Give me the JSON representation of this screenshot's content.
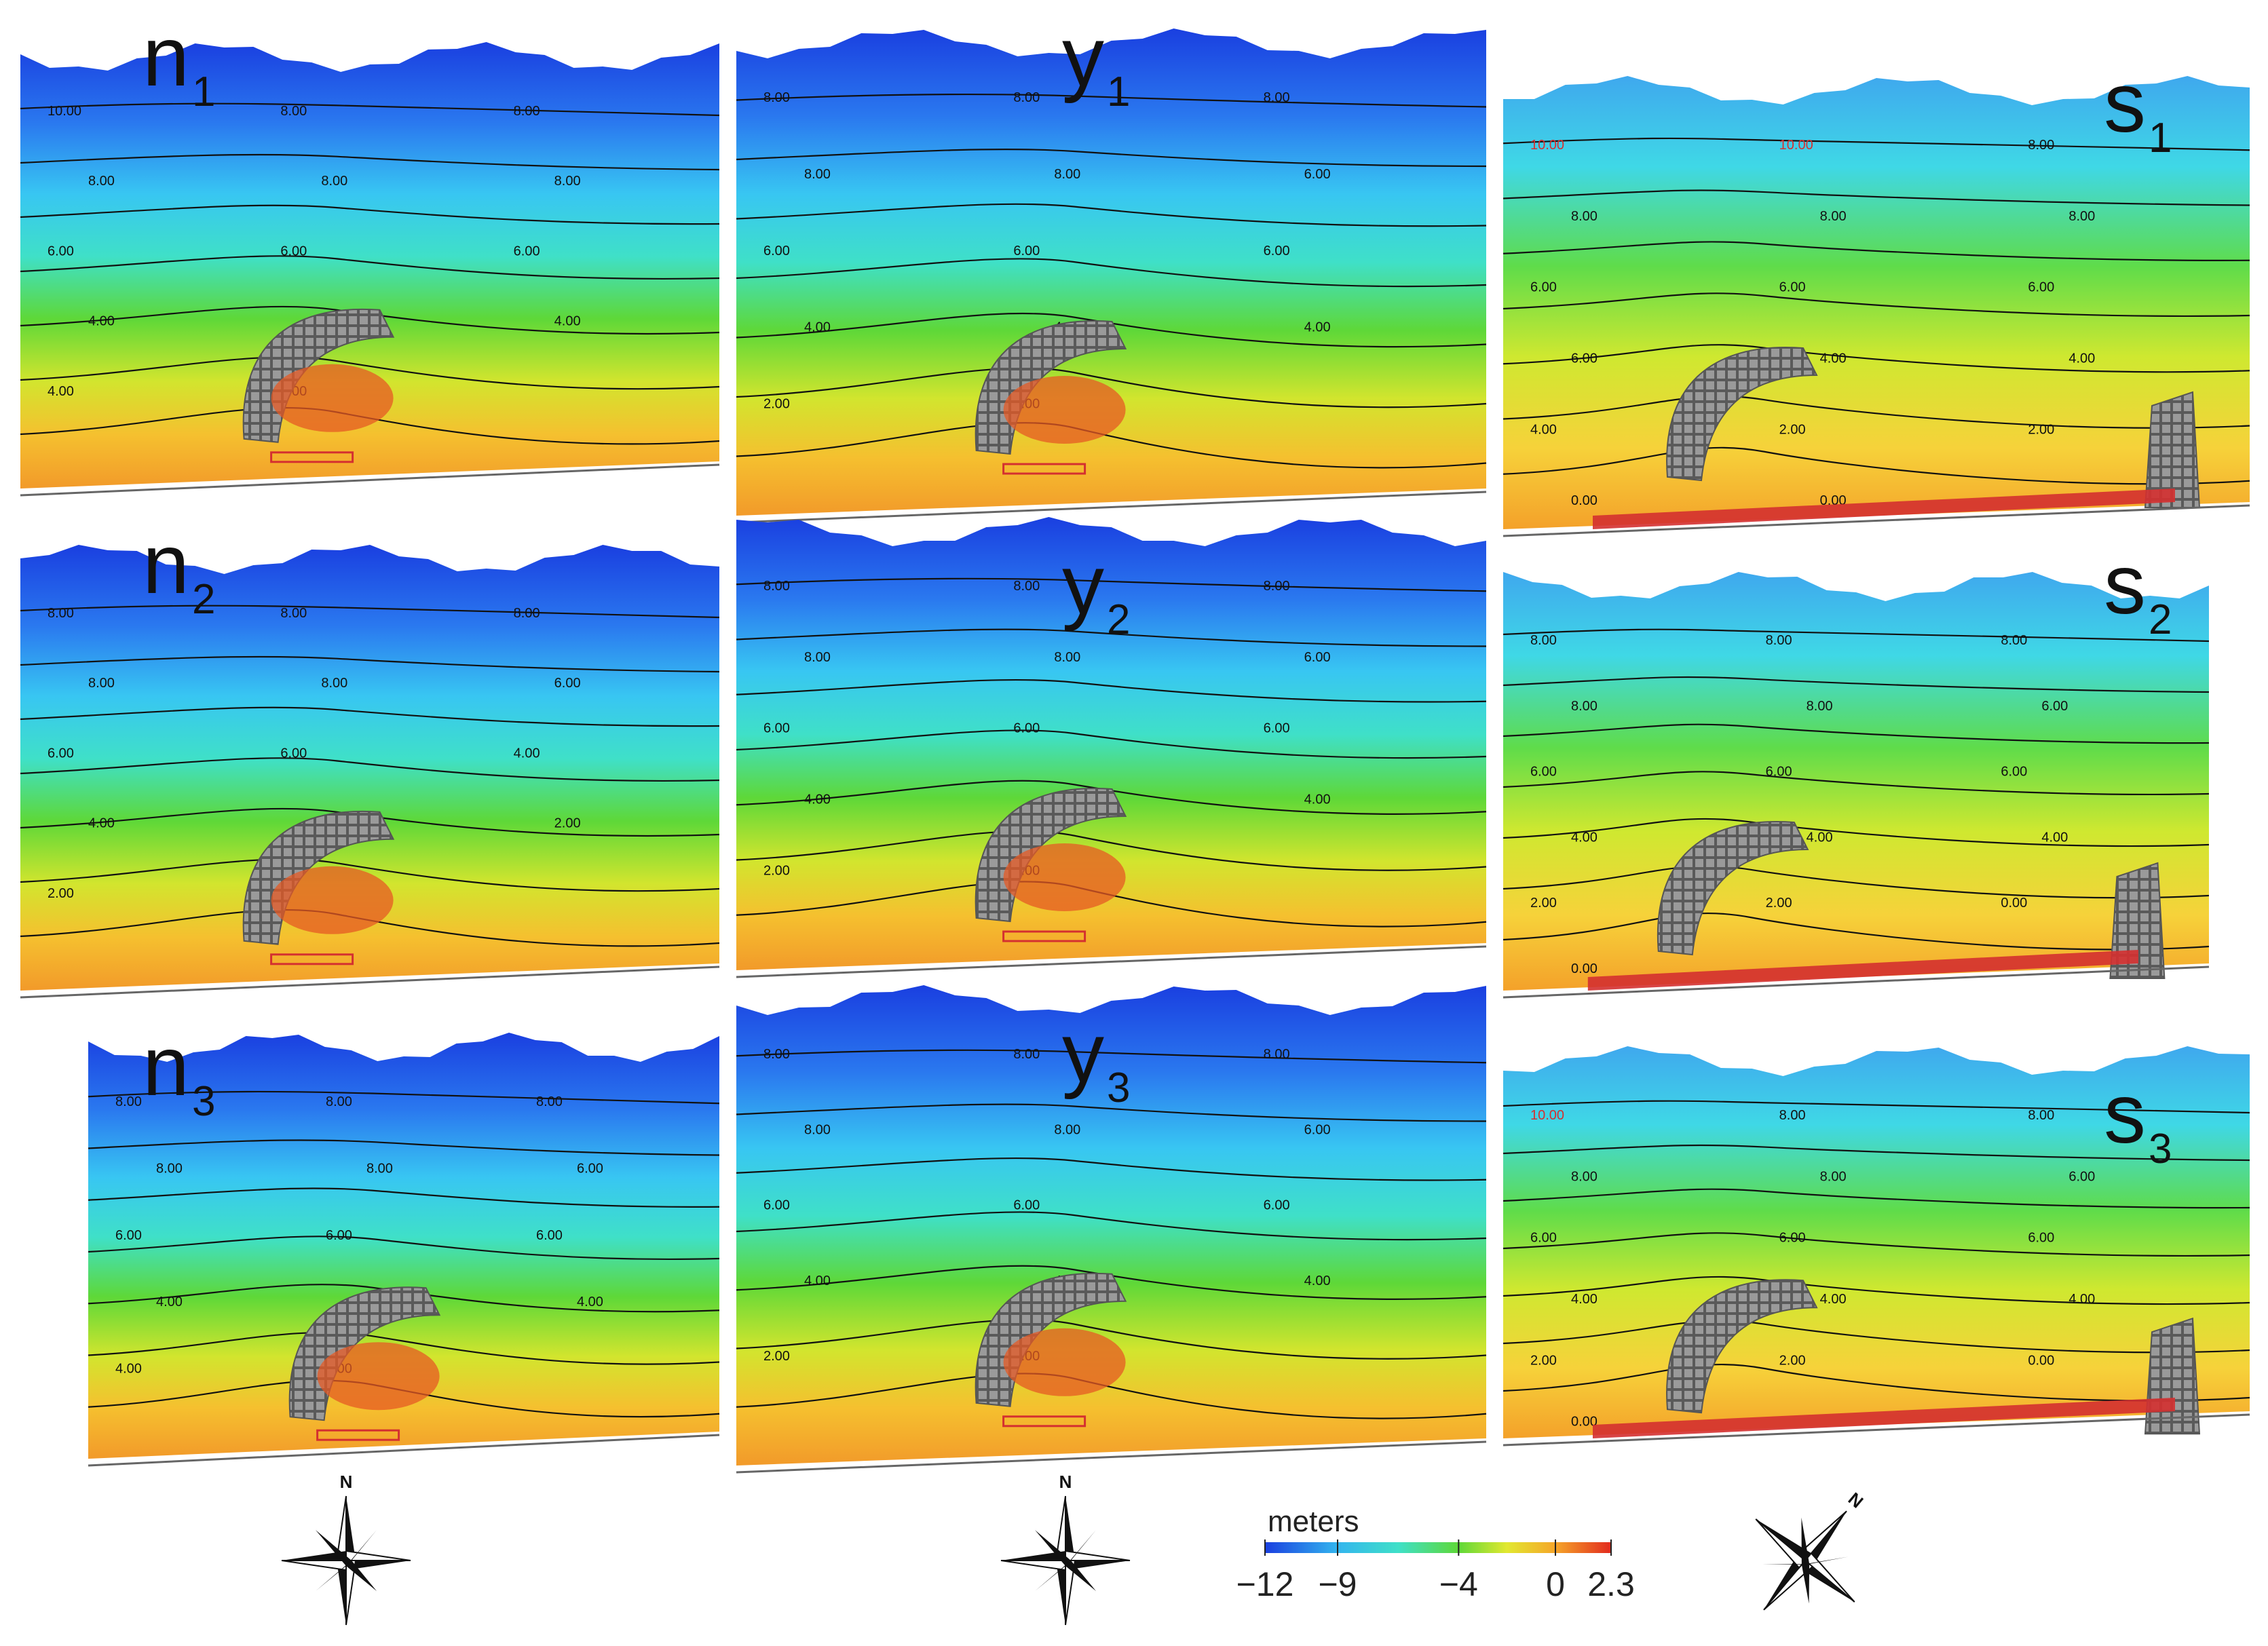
{
  "panels": [
    {
      "id": "n1",
      "letter": "n",
      "sub": "1",
      "contours": [
        "10.00",
        "8.00",
        "8.00",
        "8.00",
        "8.00",
        "8.00",
        "6.00",
        "6.00",
        "6.00",
        "4.00",
        "4.00",
        "4.00",
        "4.00",
        "4.00"
      ]
    },
    {
      "id": "y1",
      "letter": "y",
      "sub": "1",
      "contours": [
        "8.00",
        "8.00",
        "8.00",
        "8.00",
        "8.00",
        "6.00",
        "6.00",
        "6.00",
        "6.00",
        "4.00",
        "4.00",
        "4.00",
        "2.00",
        "2.00"
      ]
    },
    {
      "id": "s1",
      "letter": "s",
      "sub": "1",
      "contours": [
        "10.00",
        "10.00",
        "8.00",
        "8.00",
        "8.00",
        "8.00",
        "6.00",
        "6.00",
        "6.00",
        "6.00",
        "4.00",
        "4.00",
        "4.00",
        "2.00",
        "2.00",
        "0.00",
        "0.00"
      ]
    },
    {
      "id": "n2",
      "letter": "n",
      "sub": "2",
      "contours": [
        "8.00",
        "8.00",
        "8.00",
        "8.00",
        "8.00",
        "6.00",
        "6.00",
        "6.00",
        "4.00",
        "4.00",
        "4.00",
        "2.00",
        "2.00"
      ]
    },
    {
      "id": "y2",
      "letter": "y",
      "sub": "2",
      "contours": [
        "8.00",
        "8.00",
        "8.00",
        "8.00",
        "8.00",
        "6.00",
        "6.00",
        "6.00",
        "6.00",
        "4.00",
        "4.00",
        "4.00",
        "2.00",
        "2.00"
      ]
    },
    {
      "id": "s2",
      "letter": "s",
      "sub": "2",
      "contours": [
        "8.00",
        "8.00",
        "8.00",
        "8.00",
        "8.00",
        "6.00",
        "6.00",
        "6.00",
        "6.00",
        "4.00",
        "4.00",
        "4.00",
        "2.00",
        "2.00",
        "0.00",
        "0.00"
      ]
    },
    {
      "id": "n3",
      "letter": "n",
      "sub": "3",
      "contours": [
        "8.00",
        "8.00",
        "8.00",
        "8.00",
        "8.00",
        "6.00",
        "6.00",
        "6.00",
        "6.00",
        "4.00",
        "4.00",
        "4.00",
        "4.00",
        "4.00"
      ]
    },
    {
      "id": "y3",
      "letter": "y",
      "sub": "3",
      "contours": [
        "8.00",
        "8.00",
        "8.00",
        "8.00",
        "8.00",
        "6.00",
        "6.00",
        "6.00",
        "6.00",
        "4.00",
        "4.00",
        "4.00",
        "2.00",
        "2.00"
      ]
    },
    {
      "id": "s3",
      "letter": "s",
      "sub": "3",
      "contours": [
        "10.00",
        "8.00",
        "8.00",
        "8.00",
        "8.00",
        "6.00",
        "6.00",
        "6.00",
        "6.00",
        "4.00",
        "4.00",
        "4.00",
        "2.00",
        "2.00",
        "0.00",
        "0.00"
      ]
    }
  ],
  "compass": [
    {
      "id": "west",
      "label": "N",
      "rotation_deg": 0
    },
    {
      "id": "center",
      "label": "N",
      "rotation_deg": 0
    },
    {
      "id": "east",
      "label": "N",
      "rotation_deg": 40
    }
  ],
  "legend": {
    "title": "meters",
    "min": -12,
    "max": 2.3,
    "ticks": [
      {
        "value": -12,
        "label": "−12"
      },
      {
        "value": -9,
        "label": "−9"
      },
      {
        "value": -4,
        "label": "−4"
      },
      {
        "value": 0,
        "label": "0"
      },
      {
        "value": 2.3,
        "label": "2.3"
      }
    ],
    "colors": [
      {
        "value": -12,
        "color": "#1a3fe0"
      },
      {
        "value": -9,
        "color": "#33b5ee"
      },
      {
        "value": -6.5,
        "color": "#3fe0c8"
      },
      {
        "value": -4,
        "color": "#5ed838"
      },
      {
        "value": -2,
        "color": "#e2e830"
      },
      {
        "value": 0,
        "color": "#f5a529"
      },
      {
        "value": 2.3,
        "color": "#e22a1e"
      }
    ]
  },
  "colors": {
    "breakwater": "#8f8f8f",
    "contour": "#111111",
    "structure_red": "#d43030",
    "vegetation": "#2e6b2e"
  }
}
